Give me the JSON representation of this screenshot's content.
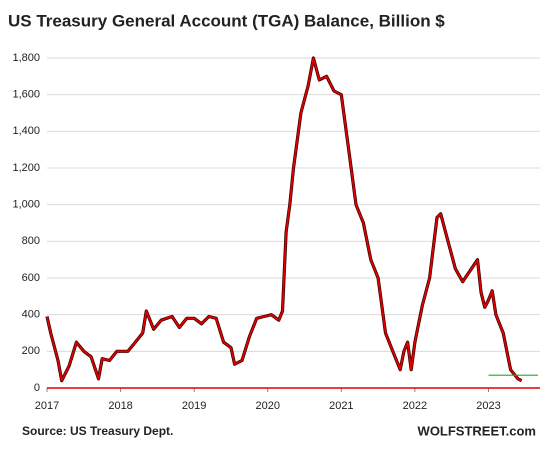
{
  "chart_data": {
    "type": "line",
    "title": "US Treasury General Account (TGA) Balance, Billion $",
    "source": "Source: US Treasury Dept.",
    "watermark": "WOLFSTREET.com",
    "x": [
      2017.0,
      2017.05,
      2017.15,
      2017.2,
      2017.3,
      2017.4,
      2017.5,
      2017.6,
      2017.7,
      2017.75,
      2017.85,
      2017.95,
      2018.1,
      2018.2,
      2018.3,
      2018.35,
      2018.45,
      2018.55,
      2018.7,
      2018.8,
      2018.9,
      2019.0,
      2019.1,
      2019.2,
      2019.3,
      2019.4,
      2019.5,
      2019.55,
      2019.65,
      2019.75,
      2019.85,
      2019.95,
      2020.05,
      2020.15,
      2020.2,
      2020.25,
      2020.3,
      2020.35,
      2020.45,
      2020.55,
      2020.62,
      2020.7,
      2020.8,
      2020.9,
      2021.0,
      2021.05,
      2021.1,
      2021.2,
      2021.3,
      2021.4,
      2021.5,
      2021.6,
      2021.7,
      2021.8,
      2021.85,
      2021.9,
      2021.95,
      2022.0,
      2022.1,
      2022.2,
      2022.3,
      2022.35,
      2022.45,
      2022.55,
      2022.65,
      2022.75,
      2022.85,
      2022.9,
      2022.95,
      2023.0,
      2023.05,
      2023.1,
      2023.2,
      2023.3,
      2023.4,
      2023.45
    ],
    "series": [
      {
        "name": "TGA Balance",
        "color": "#e00000",
        "values": [
          390,
          300,
          150,
          40,
          120,
          250,
          200,
          170,
          50,
          160,
          150,
          200,
          200,
          250,
          300,
          420,
          320,
          370,
          390,
          330,
          380,
          380,
          350,
          390,
          380,
          250,
          220,
          130,
          150,
          280,
          380,
          390,
          400,
          370,
          420,
          850,
          1000,
          1200,
          1500,
          1650,
          1800,
          1680,
          1700,
          1620,
          1600,
          1450,
          1300,
          1000,
          900,
          700,
          600,
          300,
          200,
          100,
          200,
          250,
          100,
          250,
          450,
          600,
          930,
          950,
          800,
          650,
          580,
          640,
          700,
          520,
          440,
          480,
          530,
          400,
          300,
          100,
          50,
          40
        ]
      }
    ],
    "reference_line": {
      "value": 70,
      "color": "#2ca02c"
    },
    "xlim": [
      2017,
      2023.7
    ],
    "xticks": [
      2017,
      2018,
      2019,
      2020,
      2021,
      2022,
      2023
    ],
    "ylim": [
      0,
      1800
    ],
    "yticks": [
      0,
      200,
      400,
      600,
      800,
      {
        "value": 1000,
        "label": "1,000"
      },
      {
        "value": 1200,
        "label": "1,200"
      },
      {
        "value": 1400,
        "label": "1,400"
      },
      {
        "value": 1600,
        "label": "1,600"
      },
      {
        "value": 1800,
        "label": "1,800"
      }
    ],
    "grid": true
  }
}
